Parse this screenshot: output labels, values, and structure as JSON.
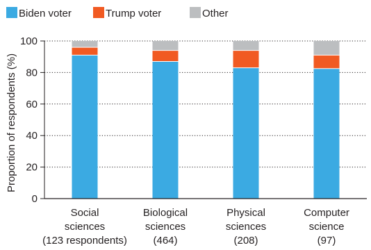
{
  "chart_data": {
    "type": "bar",
    "stacked": true,
    "categories": [
      [
        "Social",
        "sciences",
        "(123 respondents)"
      ],
      [
        "Biological",
        "sciences",
        "(464)"
      ],
      [
        "Physical",
        "sciences",
        "(208)"
      ],
      [
        "Computer",
        "science",
        "(97)"
      ]
    ],
    "series": [
      {
        "name": "Biden voter",
        "color": "#3baae2",
        "values": [
          91,
          87,
          83,
          82.5
        ]
      },
      {
        "name": "Trump voter",
        "color": "#f15a22",
        "values": [
          5,
          7,
          11,
          8.5
        ]
      },
      {
        "name": "Other",
        "color": "#bcbec0",
        "values": [
          4,
          6,
          6,
          9
        ]
      }
    ],
    "ylabel": "Proportion of respondents (%)",
    "yticks": [
      0,
      20,
      40,
      60,
      80,
      100
    ],
    "ylim": [
      0,
      100
    ],
    "grid": "dotted horizontal",
    "legend": "top-left"
  }
}
